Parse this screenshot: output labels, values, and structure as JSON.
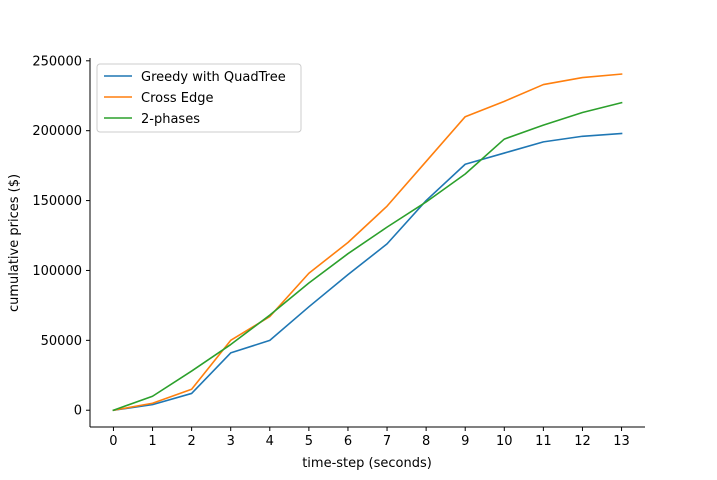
{
  "chart_data": {
    "type": "line",
    "title": "",
    "xlabel": "time-step (seconds)",
    "ylabel": "cumulative prices ($)",
    "x": [
      0,
      1,
      2,
      3,
      4,
      5,
      6,
      7,
      8,
      9,
      10,
      11,
      12,
      13
    ],
    "x_ticks": [
      "0",
      "1",
      "2",
      "3",
      "4",
      "5",
      "6",
      "7",
      "8",
      "9",
      "10",
      "11",
      "12",
      "13"
    ],
    "y_ticks": [
      "0",
      "50000",
      "100000",
      "150000",
      "200000",
      "250000"
    ],
    "xlim": [
      -0.6,
      13.6
    ],
    "ylim": [
      -12000,
      252000
    ],
    "grid": false,
    "legend_position": "top-left",
    "series": [
      {
        "name": "Greedy with QuadTree",
        "color": "#1f77b4",
        "values": [
          0,
          4000,
          12000,
          41000,
          50000,
          74000,
          97000,
          119000,
          150000,
          176000,
          184000,
          192000,
          196000,
          198000
        ]
      },
      {
        "name": "Cross Edge",
        "color": "#ff7f0e",
        "values": [
          0,
          5000,
          15000,
          50000,
          67000,
          98000,
          120000,
          146000,
          178000,
          210000,
          221000,
          233000,
          238000,
          240500
        ]
      },
      {
        "name": "2-phases",
        "color": "#2ca02c",
        "values": [
          0,
          10000,
          28000,
          47000,
          68000,
          91000,
          112000,
          131000,
          149000,
          169000,
          194000,
          204000,
          213000,
          220000
        ]
      }
    ]
  }
}
